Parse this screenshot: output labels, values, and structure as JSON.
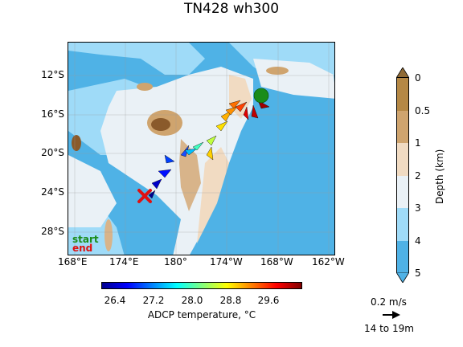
{
  "title": "TN428 wh300",
  "map": {
    "lat_ticks": [
      "12°S",
      "16°S",
      "20°S",
      "24°S",
      "28°S"
    ],
    "lon_ticks": [
      "168°E",
      "174°E",
      "180°",
      "174°W",
      "168°W",
      "162°W"
    ],
    "legend": {
      "start": "start",
      "end": "end",
      "start_color": "#1a8c1a",
      "end_color": "#e01010"
    }
  },
  "temperature_colorbar": {
    "label": "ADCP temperature, °C",
    "ticks": [
      "26.4",
      "27.2",
      "28.0",
      "28.8",
      "29.6"
    ]
  },
  "depth_colorbar": {
    "label": "Depth (km)",
    "ticks": [
      "0",
      "0.5",
      "1",
      "2",
      "3",
      "4",
      "5"
    ],
    "colors": [
      "#b58845",
      "#cfa46e",
      "#f1dbc2",
      "#eaf1f6",
      "#9fdbf8",
      "#4fb2e6"
    ]
  },
  "vector_scale": {
    "speed": "0.2 m/s",
    "depth_range": "14 to 19m"
  }
}
